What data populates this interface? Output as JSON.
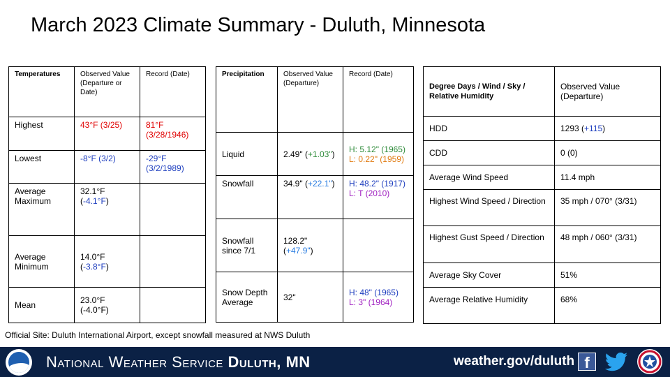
{
  "title": "March 2023 Climate Summary - Duluth, Minnesota",
  "temperatures": {
    "headers": [
      "Temperatures",
      "Observed Value (Departure or Date)",
      "Record (Date)"
    ],
    "rows": [
      {
        "label": "Highest",
        "observed": "43°F (3/25)",
        "record": "81°F (3/28/1946)"
      },
      {
        "label": "Lowest",
        "observed": "-8°F (3/2)",
        "record": "-29°F (3/2/1989)"
      },
      {
        "label": "Average Maximum",
        "observed_main": "32.1°F (",
        "observed_dep": "-4.1°F",
        "observed_end": ")",
        "record": ""
      },
      {
        "label": "Average Minimum",
        "observed_main": "14.0°F (",
        "observed_dep": "-3.8°F",
        "observed_end": ")",
        "record": ""
      },
      {
        "label": "Mean",
        "observed": "23.0°F (-4.0°F)",
        "record": ""
      }
    ]
  },
  "precipitation": {
    "headers": [
      "Precipitation",
      "Observed Value (Departure)",
      "Record (Date)"
    ],
    "rows": [
      {
        "label": "Liquid",
        "observed_main": "2.49\" (",
        "observed_dep": "+1.03\"",
        "observed_end": ")",
        "record_high": "H: 5.12\" (1965)",
        "record_low": "L: 0.22\" (1959)"
      },
      {
        "label": "Snowfall",
        "observed_main": "34.9\" (",
        "observed_dep": "+22.1\"",
        "observed_end": ")",
        "record_high": "H: 48.2\" (1917)",
        "record_low": "L: T (2010)"
      },
      {
        "label": "Snowfall since 7/1",
        "observed_main": "128.2\" (",
        "observed_dep": "+47.9\"",
        "observed_end": ")",
        "record_high": "",
        "record_low": ""
      },
      {
        "label": "Snow Depth Average",
        "observed": "32\"",
        "record_high": "H: 48\" (1965)",
        "record_low": "L: 3\" (1964)"
      }
    ]
  },
  "degree_days": {
    "headers": [
      "Degree Days / Wind / Sky / Relative Humidity",
      "Observed Value (Departure)"
    ],
    "rows": [
      {
        "label": "HDD",
        "observed_main": "1293 (",
        "observed_dep": "+115",
        "observed_end": ")"
      },
      {
        "label": "CDD",
        "observed": "0 (0)"
      },
      {
        "label": "Average Wind Speed",
        "observed": "11.4 mph"
      },
      {
        "label": "Highest Wind Speed / Direction",
        "observed": "35 mph / 070° (3/31)"
      },
      {
        "label": "Highest Gust Speed / Direction",
        "observed": "48 mph / 060° (3/31)"
      },
      {
        "label": "Average Sky Cover",
        "observed": "51%"
      },
      {
        "label": "Average Relative Humidity",
        "observed": "68%"
      }
    ]
  },
  "footnote": "Official Site: Duluth International Airport, except snowfall measured at NWS Duluth",
  "footer": {
    "org_prefix": "National Weather Service ",
    "org_office": "Duluth, MN",
    "url": "weather.gov/duluth",
    "facebook_glyph": "f"
  }
}
